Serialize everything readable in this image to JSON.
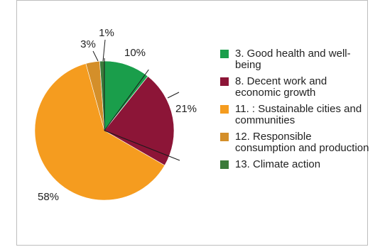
{
  "chart_data": {
    "type": "pie",
    "slices": [
      {
        "name": "3. Good health and well-being",
        "value": 10,
        "label": "10%",
        "color": "#1a9e4b"
      },
      {
        "name": "8. Decent work and economic growth",
        "value": 21,
        "label": "21%",
        "color": "#8c1537"
      },
      {
        "name": "11. : Sustainable cities and communities",
        "value": 58,
        "label": "58%",
        "color": "#f59c1f"
      },
      {
        "name": "12. Responsible consumption and production",
        "value": 3,
        "label": "3%",
        "color": "#d48f2a"
      },
      {
        "name": "13. Climate action",
        "value": 1,
        "label": "1%",
        "color": "#3b7a3a"
      }
    ],
    "legend_position": "right"
  }
}
